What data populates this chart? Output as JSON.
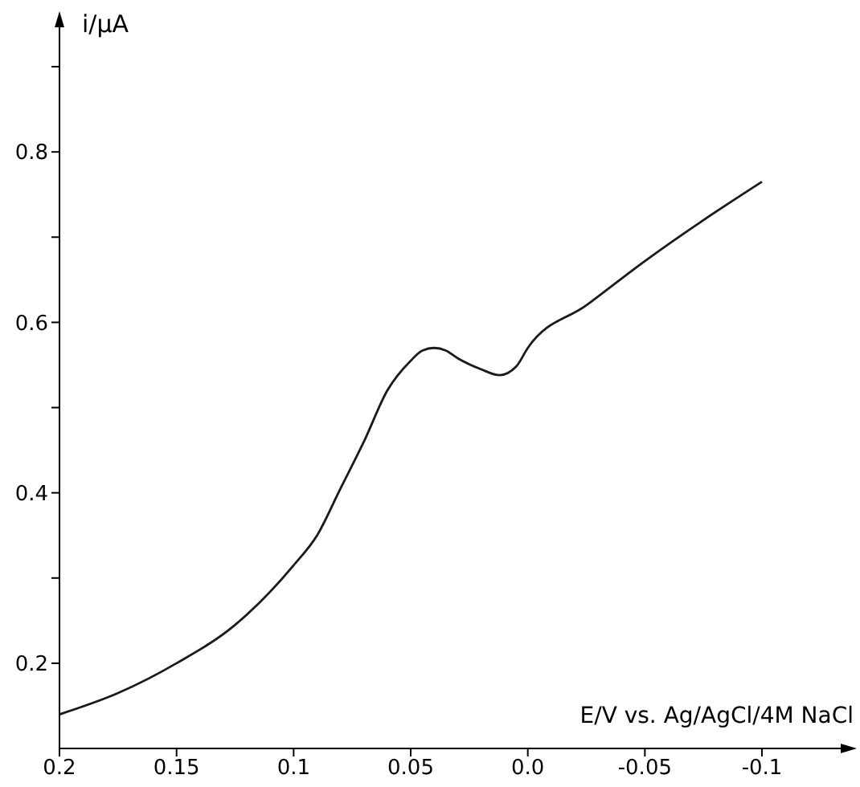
{
  "chart_data": {
    "type": "line",
    "xlabel": "E/V vs. Ag/AgCl/4M NaCl",
    "ylabel": "i/μA",
    "x": [
      0.2,
      0.175,
      0.15,
      0.125,
      0.1,
      0.09,
      0.08,
      0.07,
      0.06,
      0.05,
      0.045,
      0.04,
      0.035,
      0.03,
      0.02,
      0.012,
      0.005,
      0.0,
      -0.025,
      -0.05,
      -0.075,
      -0.1
    ],
    "series": [
      {
        "color": "#1a1a1a",
        "values": [
          0.14,
          0.165,
          0.2,
          0.245,
          0.315,
          0.35,
          0.405,
          0.46,
          0.52,
          0.555,
          0.567,
          0.57,
          0.567,
          0.558,
          0.545,
          0.538,
          0.548,
          0.57,
          0.62,
          0.672,
          0.72,
          0.765
        ]
      }
    ],
    "xlim": [
      0.2,
      -0.135
    ],
    "ylim": [
      0.1,
      0.95
    ],
    "xticks": [
      0.2,
      0.15,
      0.1,
      0.05,
      {
        "value": 0,
        "label": "0.0"
      },
      -0.05,
      -0.1
    ],
    "yticks": [
      0.2,
      {
        "value": 0.3,
        "label": null
      },
      0.4,
      {
        "value": 0.5,
        "label": null
      },
      0.6,
      {
        "value": 0.7,
        "label": null
      },
      0.8,
      {
        "value": 0.9,
        "label": null
      }
    ],
    "grid": false,
    "legend": false,
    "marker": "none",
    "line_style": "solid"
  }
}
